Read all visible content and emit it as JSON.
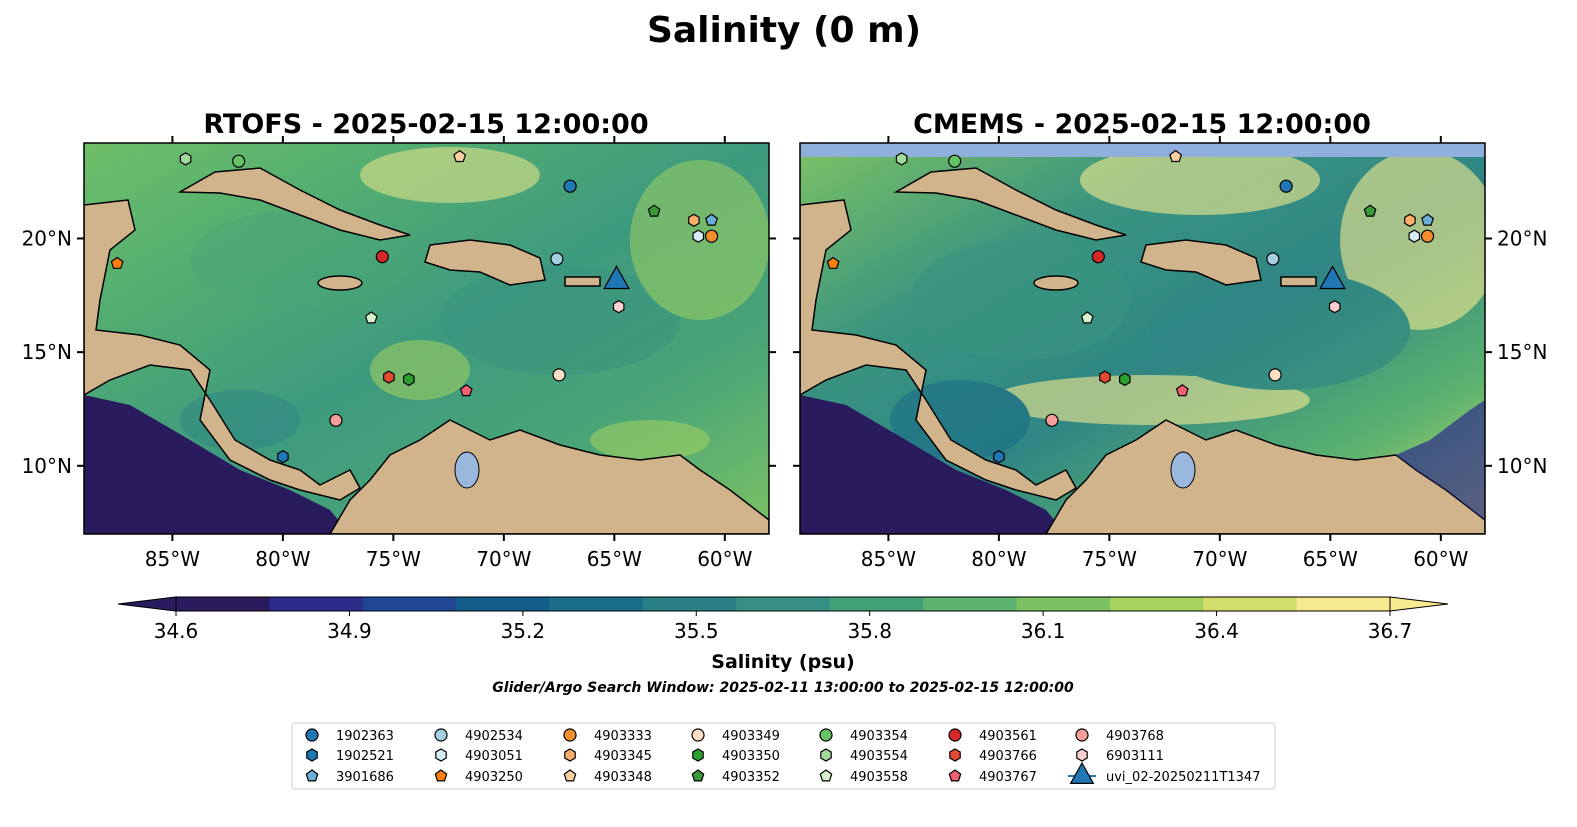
{
  "figure": {
    "suptitle": "Salinity (0 m)"
  },
  "panels": [
    {
      "id": "rtofs",
      "title": "RTOFS - 2025-02-15 12:00:00",
      "has_top_band": false
    },
    {
      "id": "cmems",
      "title": "CMEMS - 2025-02-15 12:00:00",
      "has_top_band": true
    }
  ],
  "axes": {
    "lon_range": [
      -89,
      -58
    ],
    "lat_range": [
      7,
      24.2
    ],
    "lon_ticks": [
      {
        "value": -85,
        "label": "85°W"
      },
      {
        "value": -80,
        "label": "80°W"
      },
      {
        "value": -75,
        "label": "75°W"
      },
      {
        "value": -70,
        "label": "70°W"
      },
      {
        "value": -65,
        "label": "65°W"
      },
      {
        "value": -60,
        "label": "60°W"
      }
    ],
    "lat_ticks": [
      {
        "value": 10,
        "label": "10°N"
      },
      {
        "value": 15,
        "label": "15°N"
      },
      {
        "value": 20,
        "label": "20°N"
      }
    ]
  },
  "colorbar": {
    "label": "Salinity (psu)",
    "min": 34.6,
    "max": 36.7,
    "ticks": [
      "34.6",
      "34.9",
      "35.2",
      "35.5",
      "35.8",
      "36.1",
      "36.4",
      "36.7"
    ],
    "extend": "both",
    "colormap": [
      "#2a1a5e",
      "#2b2c8a",
      "#1f4796",
      "#145c8c",
      "#1b6e87",
      "#2a7e86",
      "#368f82",
      "#43a17a",
      "#5cb26f",
      "#7cc264",
      "#a6d25f",
      "#d2e06b",
      "#f5ea8f"
    ]
  },
  "search_window": "Glider/Argo Search Window: 2025-02-11 13:00:00 to 2025-02-15 12:00:00",
  "colors": {
    "land": "#d2b48c",
    "pacific": "#2a1a5e",
    "lake": "#9ab8de",
    "band": "#8fb0dc",
    "glider": "#1f77b4"
  },
  "legend": {
    "items": [
      {
        "label": "1902363",
        "shape": "circle",
        "color": "#1f77b4"
      },
      {
        "label": "1902521",
        "shape": "hexagon",
        "color": "#1f77b4"
      },
      {
        "label": "3901686",
        "shape": "pentagon",
        "color": "#6aaed6"
      },
      {
        "label": "4902534",
        "shape": "circle",
        "color": "#a6cee3"
      },
      {
        "label": "4903051",
        "shape": "hexagon",
        "color": "#d6ecf7"
      },
      {
        "label": "4903250",
        "shape": "pentagon",
        "color": "#ff7f0e"
      },
      {
        "label": "4903333",
        "shape": "circle",
        "color": "#f28e2b"
      },
      {
        "label": "4903345",
        "shape": "hexagon",
        "color": "#fdae6b"
      },
      {
        "label": "4903348",
        "shape": "pentagon",
        "color": "#fdd0a2"
      },
      {
        "label": "4903349",
        "shape": "circle",
        "color": "#fde0c5"
      },
      {
        "label": "4903350",
        "shape": "hexagon",
        "color": "#2ca02c"
      },
      {
        "label": "4903352",
        "shape": "pentagon",
        "color": "#3a9a3a"
      },
      {
        "label": "4903354",
        "shape": "circle",
        "color": "#66c266"
      },
      {
        "label": "4903554",
        "shape": "hexagon",
        "color": "#a1d99b"
      },
      {
        "label": "4903558",
        "shape": "pentagon",
        "color": "#d4f0cc"
      },
      {
        "label": "4903561",
        "shape": "circle",
        "color": "#d62728"
      },
      {
        "label": "4903766",
        "shape": "hexagon",
        "color": "#e34a33"
      },
      {
        "label": "4903767",
        "shape": "pentagon",
        "color": "#f06070"
      },
      {
        "label": "4903768",
        "shape": "circle",
        "color": "#f4a09a"
      },
      {
        "label": "6903111",
        "shape": "hexagon",
        "color": "#fcd0d0"
      },
      {
        "label": "uvi_02-20250211T1347",
        "shape": "triangle",
        "color": "#1f77b4"
      }
    ]
  },
  "markers": [
    {
      "label": "1902363",
      "lon": -67.0,
      "lat": 22.3
    },
    {
      "label": "1902521",
      "lon": -80.0,
      "lat": 10.4
    },
    {
      "label": "3901686",
      "lon": -60.6,
      "lat": 20.8
    },
    {
      "label": "4902534",
      "lon": -67.6,
      "lat": 19.1
    },
    {
      "label": "4903051",
      "lon": -61.2,
      "lat": 20.1
    },
    {
      "label": "4903250",
      "lon": -87.5,
      "lat": 18.9
    },
    {
      "label": "4903333",
      "lon": -60.6,
      "lat": 20.1
    },
    {
      "label": "4903345",
      "lon": -61.4,
      "lat": 20.8
    },
    {
      "label": "4903348",
      "lon": -72.0,
      "lat": 23.6
    },
    {
      "label": "4903349",
      "lon": -67.5,
      "lat": 14.0
    },
    {
      "label": "4903350",
      "lon": -74.3,
      "lat": 13.8
    },
    {
      "label": "4903352",
      "lon": -63.2,
      "lat": 21.2
    },
    {
      "label": "4903354",
      "lon": -82.0,
      "lat": 23.4
    },
    {
      "label": "4903554",
      "lon": -84.4,
      "lat": 23.5
    },
    {
      "label": "4903558",
      "lon": -76.0,
      "lat": 16.5
    },
    {
      "label": "4903561",
      "lon": -75.5,
      "lat": 19.2
    },
    {
      "label": "4903766",
      "lon": -75.2,
      "lat": 13.9
    },
    {
      "label": "4903767",
      "lon": -71.7,
      "lat": 13.3
    },
    {
      "label": "4903768",
      "lon": -77.6,
      "lat": 12.0
    },
    {
      "label": "6903111",
      "lon": -64.8,
      "lat": 17.0
    },
    {
      "label": "uvi_02-20250211T1347",
      "lon": -64.9,
      "lat": 18.2
    }
  ]
}
